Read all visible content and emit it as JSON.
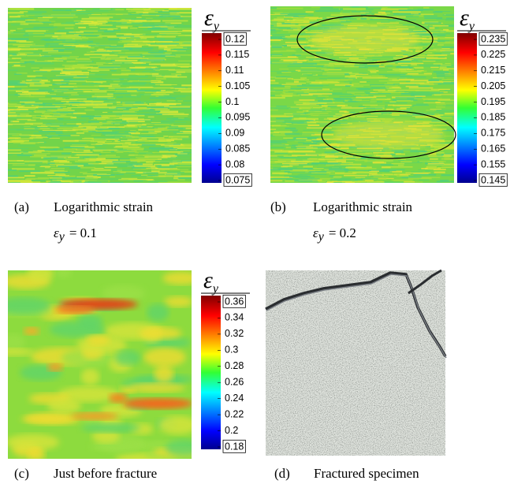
{
  "panels": [
    {
      "label": "(a)",
      "caption": "Logarithmic strain",
      "condition": {
        "symbol": "ε",
        "subscript": "y",
        "text": "= 0.1"
      },
      "colorbar": {
        "symbol": "ε",
        "subscript": "y",
        "ticks": [
          0.075,
          0.08,
          0.085,
          0.09,
          0.095,
          0.1,
          0.105,
          0.11,
          0.115,
          0.12
        ]
      }
    },
    {
      "label": "(b)",
      "caption": "Logarithmic strain",
      "condition": {
        "symbol": "ε",
        "subscript": "y",
        "text": "= 0.2"
      },
      "colorbar": {
        "symbol": "ε",
        "subscript": "y",
        "ticks": [
          0.145,
          0.155,
          0.165,
          0.175,
          0.185,
          0.195,
          0.205,
          0.215,
          0.225,
          0.235
        ]
      }
    },
    {
      "label": "(c)",
      "caption": "Just before fracture",
      "colorbar": {
        "symbol": "ε",
        "subscript": "y",
        "ticks": [
          0.18,
          0.2,
          0.22,
          0.24,
          0.26,
          0.28,
          0.3,
          0.32,
          0.34,
          0.36
        ]
      }
    },
    {
      "label": "(d)",
      "caption": "Fractured specimen"
    }
  ]
}
